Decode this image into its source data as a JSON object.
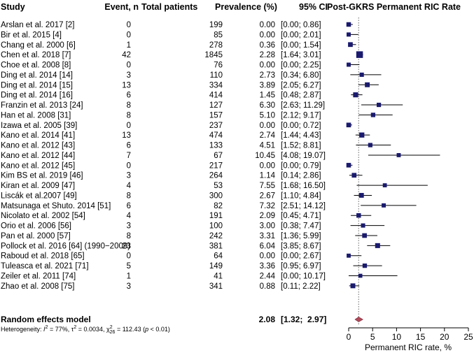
{
  "headers": {
    "study": "Study",
    "event": "Event, n",
    "total": "Total patients",
    "prevalence": "Prevalence (%)",
    "ci": "95% CI",
    "plot": "Post-GKRS Permanent RIC Rate"
  },
  "studies": [
    {
      "name": "Arslan et al. 2017 [2]",
      "event": "0",
      "total": "199",
      "prev": "0.00",
      "ci": "[0.00;  0.86]"
    },
    {
      "name": "Bir et al. 2015 [4]",
      "event": "0",
      "total": "85",
      "prev": "0.00",
      "ci": "[0.00;  2.01]"
    },
    {
      "name": "Chang et al. 2000 [6]",
      "event": "1",
      "total": "278",
      "prev": "0.36",
      "ci": "[0.00;  1.54]"
    },
    {
      "name": "Chen et al. 2018 [7]",
      "event": "42",
      "total": "1845",
      "prev": "2.28",
      "ci": "[1.64;  3.01]"
    },
    {
      "name": "Choe et al. 2008 [8]",
      "event": "0",
      "total": "76",
      "prev": "0.00",
      "ci": "[0.00;  2.25]"
    },
    {
      "name": "Ding et al. 2014 [14]",
      "event": "3",
      "total": "110",
      "prev": "2.73",
      "ci": "[0.34;  6.80]"
    },
    {
      "name": "Ding et al. 2014 [15]",
      "event": "13",
      "total": "334",
      "prev": "3.89",
      "ci": "[2.05;  6.27]"
    },
    {
      "name": "Ding et al. 2014 [16]",
      "event": "6",
      "total": "414",
      "prev": "1.45",
      "ci": "[0.48;  2.87]"
    },
    {
      "name": "Franzin et al. 2013 [24]",
      "event": "8",
      "total": "127",
      "prev": "6.30",
      "ci": "[2.63; 11.29]"
    },
    {
      "name": "Han et al. 2008 [31]",
      "event": "8",
      "total": "157",
      "prev": "5.10",
      "ci": "[2.12;  9.17]"
    },
    {
      "name": "Izawa et al. 2005 [39]",
      "event": "0",
      "total": "237",
      "prev": "0.00",
      "ci": "[0.00;  0.72]"
    },
    {
      "name": "Kano et al. 2014 [41]",
      "event": "13",
      "total": "474",
      "prev": "2.74",
      "ci": "[1.44;  4.43]"
    },
    {
      "name": "Kano et al. 2012 [43]",
      "event": "6",
      "total": "133",
      "prev": "4.51",
      "ci": "[1.52;  8.81]"
    },
    {
      "name": "Kano et al. 2012 [44]",
      "event": "7",
      "total": "67",
      "prev": "10.45",
      "ci": "[4.08; 19.07]"
    },
    {
      "name": "Kano et al. 2012 [45]",
      "event": "0",
      "total": "217",
      "prev": "0.00",
      "ci": "[0.00;  0.79]"
    },
    {
      "name": "Kim BS et al. 2019 [46]",
      "event": "3",
      "total": "264",
      "prev": "1.14",
      "ci": "[0.14;  2.86]"
    },
    {
      "name": "Kiran et al. 2009 [47]",
      "event": "4",
      "total": "53",
      "prev": "7.55",
      "ci": "[1.68; 16.50]"
    },
    {
      "name": "Liscák et al.2007 [49]",
      "event": "8",
      "total": "300",
      "prev": "2.67",
      "ci": "[1.10;  4.84]"
    },
    {
      "name": "Matsunaga et Shuto. 2014 [51]",
      "event": "6",
      "total": "82",
      "prev": "7.32",
      "ci": "[2.51; 14.12]"
    },
    {
      "name": "Nicolato et al. 2002 [54]",
      "event": "4",
      "total": "191",
      "prev": "2.09",
      "ci": "[0.45;  4.71]"
    },
    {
      "name": "Orio et al. 2006 [56]",
      "event": "3",
      "total": "100",
      "prev": "3.00",
      "ci": "[0.38;  7.47]"
    },
    {
      "name": "Pan et al. 2000 [57]",
      "event": "8",
      "total": "242",
      "prev": "3.31",
      "ci": "[1.36;  5.99]"
    },
    {
      "name": "Pollock et al. 2016 [64] (1990−2009)",
      "event": "23",
      "total": "381",
      "prev": "6.04",
      "ci": "[3.85;  8.67]"
    },
    {
      "name": "Raboud et al. 2018 [65]",
      "event": "0",
      "total": "64",
      "prev": "0.00",
      "ci": "[0.00;  2.67]"
    },
    {
      "name": "Tuleasca et al. 2021 [71]",
      "event": "5",
      "total": "149",
      "prev": "3.36",
      "ci": "[0.95;  6.97]"
    },
    {
      "name": "Zeiler et al. 2011 [74]",
      "event": "1",
      "total": "41",
      "prev": "2.44",
      "ci": "[0.00; 10.17]"
    },
    {
      "name": "Zhao et al. 2008 [75]",
      "event": "3",
      "total": "341",
      "prev": "0.88",
      "ci": "[0.11;  2.22]"
    }
  ],
  "summary": {
    "label": "Random effects model",
    "prev": "2.08",
    "ci": "[1.32;  2.97]"
  },
  "heterogeneity": {
    "prefix": "Heterogeneity: ",
    "i2_symbol": "I",
    "i2_sup": "2",
    "i2_value": " = 77%, ",
    "tau": "τ",
    "tau_sup": "2",
    "tau_value": " = 0.0034, ",
    "chi": "χ",
    "chi_sup": "2",
    "chi_sub": "26",
    "chi_value": " = 112.43 (",
    "p_symbol": "p",
    "p_value": " < 0.01)"
  },
  "chart_data": {
    "type": "forest",
    "title": "Post-GKRS Permanent RIC Rate",
    "xlabel": "Permanent RIC rate, %",
    "xlim": [
      0,
      25
    ],
    "xticks": [
      0,
      5,
      10,
      15,
      20,
      25
    ],
    "estimates": [
      0.0,
      0.0,
      0.36,
      2.28,
      0.0,
      2.73,
      3.89,
      1.45,
      6.3,
      5.1,
      0.0,
      2.74,
      4.51,
      10.45,
      0.0,
      1.14,
      7.55,
      2.67,
      7.32,
      2.09,
      3.0,
      3.31,
      6.04,
      0.0,
      3.36,
      2.44,
      0.88
    ],
    "lower": [
      0.0,
      0.0,
      0.0,
      1.64,
      0.0,
      0.34,
      2.05,
      0.48,
      2.63,
      2.12,
      0.0,
      1.44,
      1.52,
      4.08,
      0.0,
      0.14,
      1.68,
      1.1,
      2.51,
      0.45,
      0.38,
      1.36,
      3.85,
      0.0,
      0.95,
      0.0,
      0.11
    ],
    "upper": [
      0.86,
      2.01,
      1.54,
      3.01,
      2.25,
      6.8,
      6.27,
      2.87,
      11.29,
      9.17,
      0.72,
      4.43,
      8.81,
      19.07,
      0.79,
      2.86,
      16.5,
      4.84,
      14.12,
      4.71,
      7.47,
      5.99,
      8.67,
      2.67,
      6.97,
      10.17,
      2.22
    ],
    "weights": [
      199,
      85,
      278,
      1845,
      76,
      110,
      334,
      414,
      127,
      157,
      237,
      474,
      133,
      67,
      217,
      264,
      53,
      300,
      82,
      191,
      100,
      242,
      381,
      64,
      149,
      41,
      341
    ],
    "pooled": {
      "estimate": 2.08,
      "lower": 1.32,
      "upper": 2.97
    },
    "colors": {
      "marker": "#1a1a6e",
      "diamond": "#b04a5a",
      "ref_line": "#666666"
    }
  }
}
